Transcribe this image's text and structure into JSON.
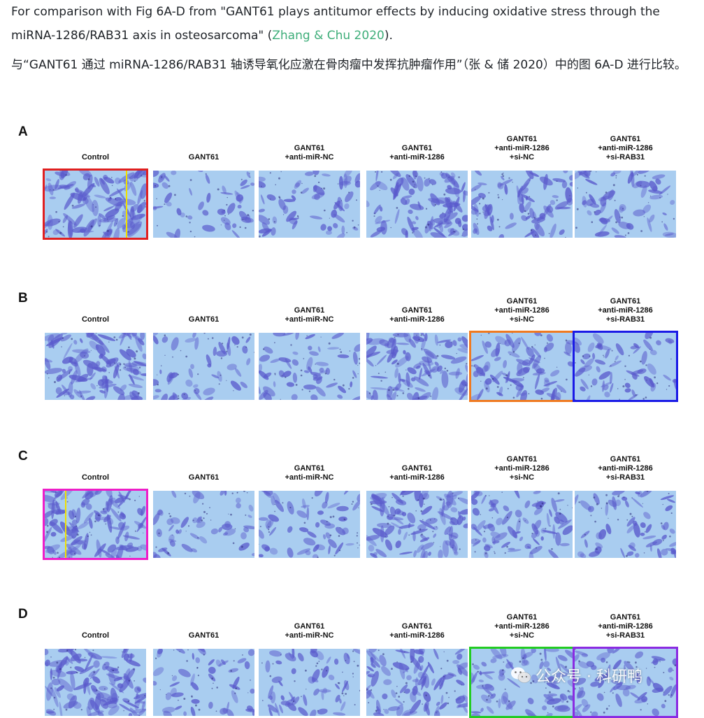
{
  "intro": {
    "en_text_before": "For comparison with Fig 6A-D from \"GANT61 plays antitumor effects by inducing oxidative stress through the miRNA-1286/RAB31 axis in osteosarcoma\" (",
    "en_link": "Zhang & Chu 2020",
    "en_text_after": ").",
    "zh_text": "与“GANT61 通过 miRNA-1286/RAB31 轴诱导氧化应激在骨肉瘤中发挥抗肿瘤作用”（张 & 储 2020）中的图 6A-D 进行比较。",
    "link_color": "#3fae7a"
  },
  "figure": {
    "columns": [
      {
        "lines": [
          "Control"
        ],
        "density": 0.9
      },
      {
        "lines": [
          "GANT61"
        ],
        "density": 0.28
      },
      {
        "lines": [
          "GANT61",
          "+anti-miR-NC"
        ],
        "density": 0.35
      },
      {
        "lines": [
          "GANT61",
          "+anti-miR-1286"
        ],
        "density": 0.75
      },
      {
        "lines": [
          "GANT61",
          "+anti-miR-1286",
          "+si-NC"
        ],
        "density": 0.55
      },
      {
        "lines": [
          "GANT61",
          "+anti-miR-1286",
          "+si-RAB31"
        ],
        "density": 0.4
      }
    ],
    "panels": [
      {
        "letter": "A",
        "highlights": [
          {
            "col": 0,
            "color": "#e02020",
            "yellow_line": 0.8
          }
        ]
      },
      {
        "letter": "B",
        "highlights": [
          {
            "col": 4,
            "color": "#f07a20"
          },
          {
            "col": 5,
            "color": "#1a1ae6"
          }
        ]
      },
      {
        "letter": "C",
        "highlights": [
          {
            "col": 0,
            "color": "#ee1ec8",
            "yellow_line": 0.2
          }
        ]
      },
      {
        "letter": "D",
        "highlights": [
          {
            "col": 4,
            "color": "#22cc22"
          },
          {
            "col": 5,
            "color": "#8a2be2"
          }
        ]
      }
    ],
    "stain_dark": "#5a5acc",
    "stain_bg": "#a9cdf0"
  },
  "watermark": {
    "text": "公众号 · 科研鸭",
    "icon": "wechat-icon"
  }
}
